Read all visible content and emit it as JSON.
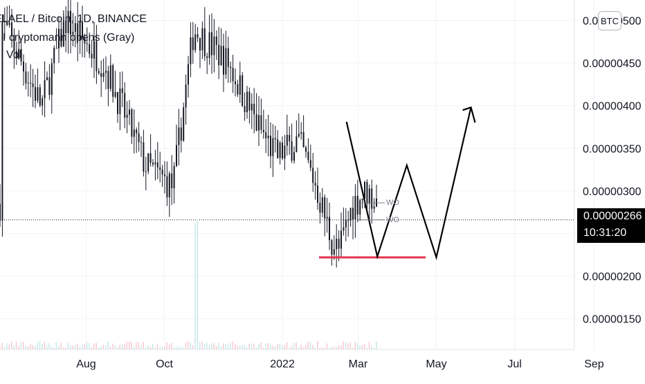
{
  "legend": {
    "symbol_line": "ELAEL / Bitcoin, 1D, BINANCE",
    "indicator_line": "I cryptomann opens (Gray)",
    "volume_line": "Vol"
  },
  "symbol_badge": "BTC",
  "last_price": {
    "price": "0.00000266",
    "countdown": "10:31:20"
  },
  "colors": {
    "candle": "#131722",
    "support_line": "#e0334b",
    "drawing": "#000000",
    "grid": "#f0f3fa",
    "axis_text": "#131722",
    "wo_label": "#787b86"
  },
  "annotations": {
    "wo_upper": "WO",
    "wo_lower": "WO"
  },
  "chart_data": {
    "type": "candlestick",
    "title": "ELAEL / Bitcoin, 1D, BINANCE",
    "y_axis": {
      "position": "right",
      "ticks": [
        "0.00000500",
        "0.00000450",
        "0.00000400",
        "0.00000350",
        "0.00000300",
        "0.00000250",
        "0.00000200",
        "0.00000150"
      ],
      "range": [
        1.14e-06,
        5.24e-06
      ]
    },
    "x_axis": {
      "ticks": [
        "Aug",
        "Oct",
        "2022",
        "Mar",
        "May",
        "Jul",
        "Sep"
      ]
    },
    "grid": true,
    "current_price": 2.66e-06,
    "support_level": 2.22e-06,
    "drawn_path_pattern": "W / double bottom projection",
    "drawn_path": [
      {
        "date": "2022-02-20",
        "price": 3.81e-06
      },
      {
        "date": "2022-03-16",
        "price": 2.23e-06
      },
      {
        "date": "2022-04-08",
        "price": 3.3e-06
      },
      {
        "date": "2022-05-01",
        "price": 2.22e-06
      },
      {
        "date": "2022-05-28",
        "price": 3.98e-06
      }
    ],
    "wo_levels": [
      2.86e-06,
      2.66e-06
    ]
  }
}
